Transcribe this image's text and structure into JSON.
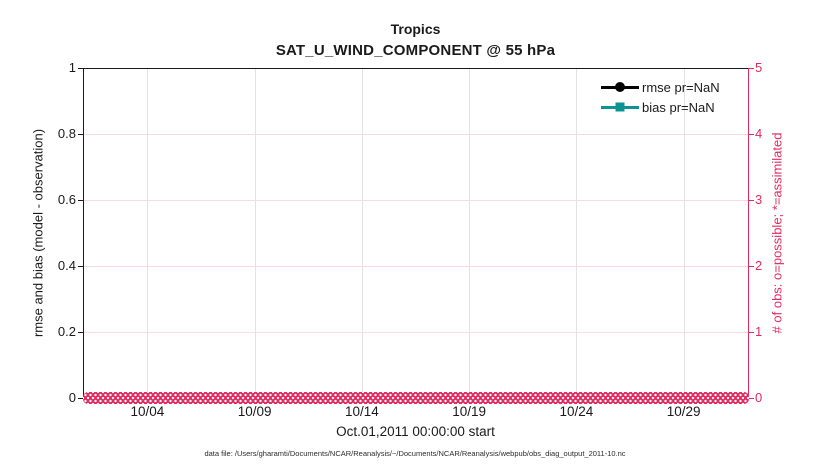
{
  "figure": {
    "title": "Tropics",
    "subtitle": "SAT_U_WIND_COMPONENT @ 55 hPa",
    "footer": "data file: /Users/gharamti/Documents/NCAR/Reanalysis/~/Documents/NCAR/Reanalysis/webpub/obs_diag_output_2011-10.nc"
  },
  "colors": {
    "pink": "#e12a60",
    "grid_pink": "#f9d9e2",
    "grid_gray": "#e2e2e2",
    "teal": "#0c9495",
    "axis_dark": "#1a1a1a"
  },
  "chart_data": {
    "type": "line",
    "title": "Tropics",
    "subtitle": "SAT_U_WIND_COMPONENT @ 55 hPa",
    "xlabel": "Oct.01,2011 00:00:00 start",
    "ylabel_left": "rmse and bias (model - observation)",
    "ylabel_right": "# of obs: o=possible; *=assimilated",
    "grid": "on",
    "x_axis": {
      "range_days": [
        1,
        32
      ],
      "tick_days": [
        4,
        9,
        14,
        19,
        24,
        29
      ],
      "tick_labels": [
        "10/04",
        "10/09",
        "10/14",
        "10/19",
        "10/24",
        "10/29"
      ]
    },
    "y_axis_left": {
      "range": [
        0,
        1
      ],
      "tick_values": [
        0,
        0.2,
        0.4,
        0.6,
        0.8,
        1
      ],
      "tick_labels": [
        "0",
        "0.2",
        "0.4",
        "0.6",
        "0.8",
        "1"
      ],
      "color": "#1a1a1a"
    },
    "y_axis_right": {
      "range": [
        0,
        5
      ],
      "tick_values": [
        0,
        1,
        2,
        3,
        4,
        5
      ],
      "tick_labels": [
        "0",
        "1",
        "2",
        "3",
        "4",
        "5"
      ],
      "color": "#e12a60"
    },
    "legend": {
      "position": "top-right-inside",
      "entries": [
        {
          "label": "rmse pr=NaN",
          "marker": "filled-circle",
          "color": "#000000"
        },
        {
          "label": "bias pr=NaN",
          "marker": "filled-square",
          "color": "#0c9495"
        }
      ]
    },
    "series": [
      {
        "name": "rmse",
        "legend_label": "rmse pr=NaN",
        "color": "#000000",
        "marker": "filled-circle",
        "values": "NaN - no curve plotted"
      },
      {
        "name": "bias",
        "legend_label": "bias pr=NaN",
        "color": "#0c9495",
        "marker": "filled-square",
        "values": "NaN - no curve plotted"
      },
      {
        "name": "obs possible",
        "marker": "o",
        "color": "#e12a60",
        "axis": "right",
        "y_constant": 0,
        "x_span_days": [
          1,
          32
        ]
      },
      {
        "name": "obs assimilated",
        "marker": "*",
        "color": "#e12a60",
        "axis": "right",
        "y_constant": 0,
        "x_span_days": [
          1,
          32
        ]
      }
    ]
  }
}
